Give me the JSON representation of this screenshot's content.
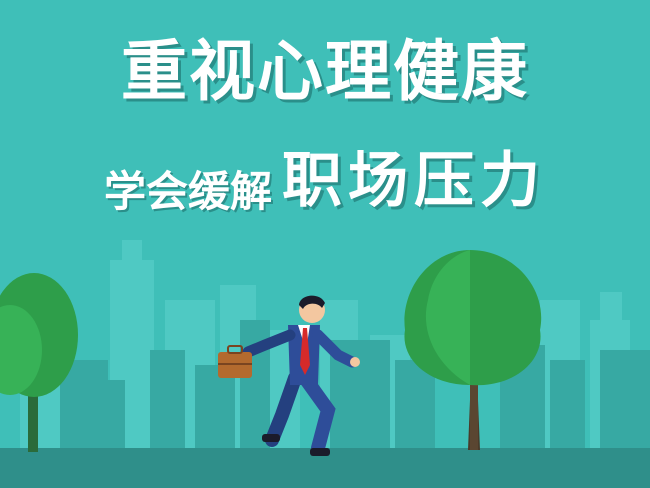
{
  "title": {
    "main": "重视心理健康",
    "sub_small": "学会缓解",
    "sub_big": "职场压力"
  },
  "colors": {
    "sky": "#3fbfb8",
    "buildings_back": "#4fc9c3",
    "buildings_front": "#37a9a3",
    "ground": "#2f8f8a",
    "tree_green": "#2e9e4a",
    "suit": "#2e4d99",
    "tie": "#d62a2a",
    "briefcase": "#b36a2e"
  }
}
